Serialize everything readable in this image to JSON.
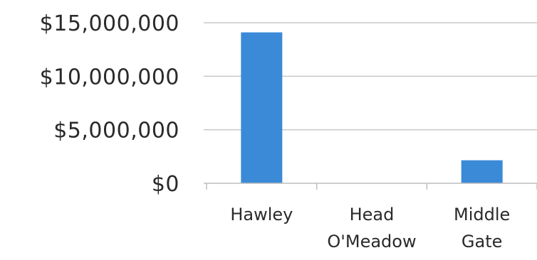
{
  "chart_data": {
    "type": "bar",
    "title": "",
    "xlabel": "",
    "ylabel": "",
    "categories": [
      "Hawley",
      "Head O'Meadow",
      "Middle Gate"
    ],
    "category_lines": [
      [
        "Hawley"
      ],
      [
        "Head",
        "O'Meadow"
      ],
      [
        "Middle",
        "Gate"
      ]
    ],
    "series": [
      {
        "values": [
          14100000,
          0,
          2150000
        ]
      }
    ],
    "ylim": [
      0,
      15000000
    ],
    "yticks": [
      0,
      5000000,
      10000000,
      15000000
    ],
    "ytick_labels": [
      "$0",
      "$5,000,000",
      "$10,000,000",
      "$15,000,000"
    ],
    "grid": true,
    "legend": "none",
    "colors": {
      "bar": "#3b8ad8",
      "grid": "#c9c9c9",
      "axis": "#bdbdbd",
      "text": "#2a2a2a"
    }
  }
}
